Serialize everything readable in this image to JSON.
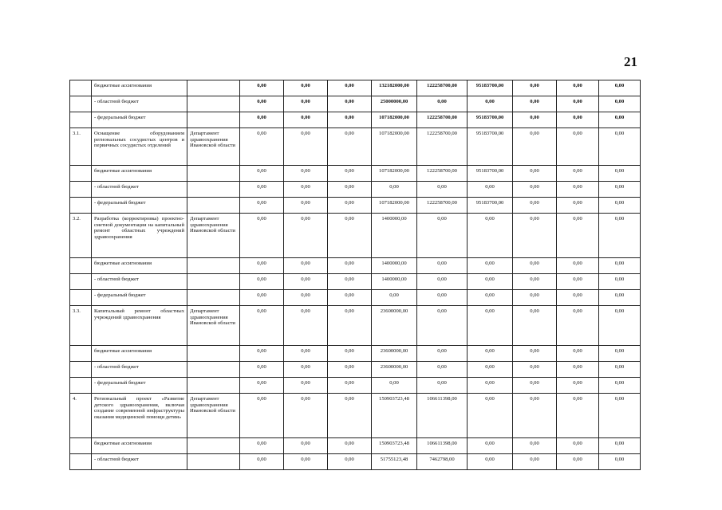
{
  "page_number": "21",
  "rows": [
    {
      "no": "",
      "name": "бюджетные ассигнования",
      "exec": "",
      "v": [
        "0,00",
        "0,00",
        "0,00",
        "132182000,00",
        "122258700,00",
        "95183700,00",
        "0,00",
        "0,00",
        "0,00"
      ]
    },
    {
      "no": "",
      "name": "- областной бюджет",
      "exec": "",
      "v": [
        "0,00",
        "0,00",
        "0,00",
        "25000000,00",
        "0,00",
        "0,00",
        "0,00",
        "0,00",
        "0,00"
      ]
    },
    {
      "no": "",
      "name": "- федеральный бюджет",
      "exec": "",
      "v": [
        "0,00",
        "0,00",
        "0,00",
        "107182000,00",
        "122258700,00",
        "95183700,00",
        "0,00",
        "0,00",
        "0,00"
      ]
    },
    {
      "no": "3.1.",
      "name": "Оснащение оборудованием региональных сосудистых центров и первичных сосудистых отделений",
      "exec": "Департамент здравоохранения Ивановской области",
      "v": [
        "0,00",
        "0,00",
        "0,00",
        "107182000,00",
        "122258700,00",
        "95183700,00",
        "0,00",
        "0,00",
        "0,00"
      ],
      "h": 40
    },
    {
      "no": "",
      "name": "бюджетные ассигнования",
      "exec": "",
      "v": [
        "0,00",
        "0,00",
        "0,00",
        "107182000,00",
        "122258700,00",
        "95183700,00",
        "0,00",
        "0,00",
        "0,00"
      ]
    },
    {
      "no": "",
      "name": "- областной бюджет",
      "exec": "",
      "v": [
        "0,00",
        "0,00",
        "0,00",
        "0,00",
        "0,00",
        "0,00",
        "0,00",
        "0,00",
        "0,00"
      ]
    },
    {
      "no": "",
      "name": "- федеральный бюджет",
      "exec": "",
      "v": [
        "0,00",
        "0,00",
        "0,00",
        "107182000,00",
        "122258700,00",
        "95183700,00",
        "0,00",
        "0,00",
        "0,00"
      ]
    },
    {
      "no": "3.2.",
      "name": "Разработка (корректировка) проектно-сметной документации на капитальный ремонт областных учреждений здравоохранения",
      "exec": "Департамент здравоохранения Ивановской области",
      "v": [
        "0,00",
        "0,00",
        "0,00",
        "1400000,00",
        "0,00",
        "0,00",
        "0,00",
        "0,00",
        "0,00"
      ],
      "h": 49
    },
    {
      "no": "",
      "name": "бюджетные ассигнования",
      "exec": "",
      "v": [
        "0,00",
        "0,00",
        "0,00",
        "1400000,00",
        "0,00",
        "0,00",
        "0,00",
        "0,00",
        "0,00"
      ]
    },
    {
      "no": "",
      "name": "- областной бюджет",
      "exec": "",
      "v": [
        "0,00",
        "0,00",
        "0,00",
        "1400000,00",
        "0,00",
        "0,00",
        "0,00",
        "0,00",
        "0,00"
      ]
    },
    {
      "no": "",
      "name": "- федеральный бюджет",
      "exec": "",
      "v": [
        "0,00",
        "0,00",
        "0,00",
        "0,00",
        "0,00",
        "0,00",
        "0,00",
        "0,00",
        "0,00"
      ]
    },
    {
      "no": "3.3.",
      "name": "Капитальный ремонт областных учреждений здравоохранения",
      "exec": "Департамент здравоохранения Ивановской области",
      "v": [
        "0,00",
        "0,00",
        "0,00",
        "23600000,00",
        "0,00",
        "0,00",
        "0,00",
        "0,00",
        "0,00"
      ],
      "h": 43
    },
    {
      "no": "",
      "name": "бюджетные ассигнования",
      "exec": "",
      "v": [
        "0,00",
        "0,00",
        "0,00",
        "23600000,00",
        "0,00",
        "0,00",
        "0,00",
        "0,00",
        "0,00"
      ]
    },
    {
      "no": "",
      "name": "- областной бюджет",
      "exec": "",
      "v": [
        "0,00",
        "0,00",
        "0,00",
        "23600000,00",
        "0,00",
        "0,00",
        "0,00",
        "0,00",
        "0,00"
      ]
    },
    {
      "no": "",
      "name": "- федеральный бюджет",
      "exec": "",
      "v": [
        "0,00",
        "0,00",
        "0,00",
        "0,00",
        "0,00",
        "0,00",
        "0,00",
        "0,00",
        "0,00"
      ]
    },
    {
      "no": "4.",
      "name": "Региональный проект «Развитие детского здравоохранения, включая создание современной инфраструктуры оказания медицинской помощи детям»",
      "exec": "Департамент здравоохранения Ивановской области",
      "v": [
        "0,00",
        "0,00",
        "0,00",
        "150903723,48",
        "106611398,00",
        "0,00",
        "0,00",
        "0,00",
        "0,00"
      ],
      "h": 49
    },
    {
      "no": "",
      "name": "бюджетные ассигнования",
      "exec": "",
      "v": [
        "0,00",
        "0,00",
        "0,00",
        "150903723,48",
        "106611398,00",
        "0,00",
        "0,00",
        "0,00",
        "0,00"
      ]
    },
    {
      "no": "",
      "name": "- областной бюджет",
      "exec": "",
      "v": [
        "0,00",
        "0,00",
        "0,00",
        "51755123,48",
        "7462798,00",
        "0,00",
        "0,00",
        "0,00",
        "0,00"
      ]
    }
  ]
}
